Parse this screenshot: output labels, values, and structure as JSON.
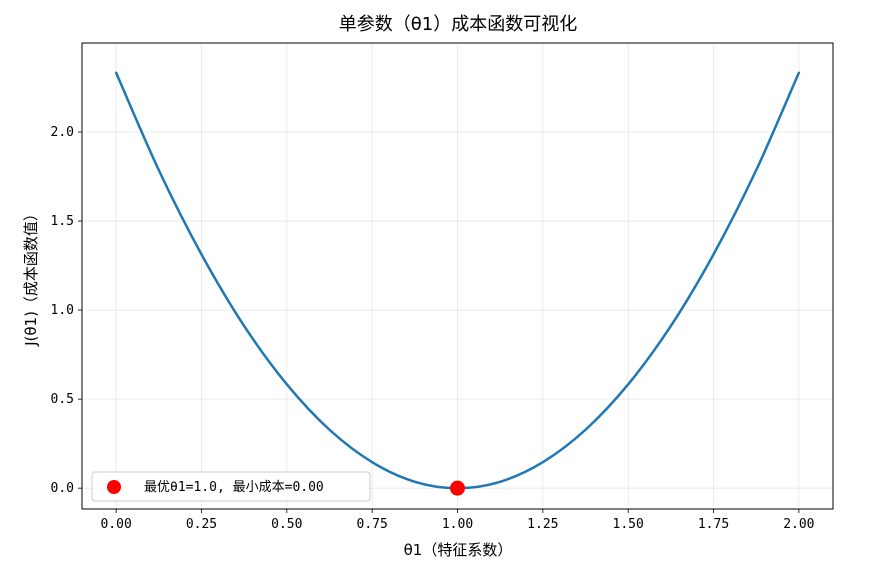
{
  "chart_data": {
    "type": "line",
    "title": "单参数（θ1）成本函数可视化",
    "xlabel": "θ1（特征系数）",
    "ylabel": "J(θ1)（成本函数值）",
    "xlim": [
      -0.1,
      2.1
    ],
    "ylim": [
      -0.117,
      2.5
    ],
    "xticks": [
      "0.00",
      "0.25",
      "0.50",
      "0.75",
      "1.00",
      "1.25",
      "1.50",
      "1.75",
      "2.00"
    ],
    "yticks": [
      "0.0",
      "0.5",
      "1.0",
      "1.5",
      "2.0"
    ],
    "grid": true,
    "series": [
      {
        "x": [
          0.0,
          0.125,
          0.25,
          0.375,
          0.5,
          0.625,
          0.75,
          0.875,
          1.0,
          1.125,
          1.25,
          1.375,
          1.5,
          1.625,
          1.75,
          1.875,
          2.0
        ],
        "y": [
          2.333,
          1.786,
          1.313,
          0.911,
          0.583,
          0.328,
          0.146,
          0.036,
          0.0,
          0.036,
          0.146,
          0.328,
          0.583,
          0.911,
          1.313,
          1.786,
          2.333
        ],
        "color": "#1f77b4"
      }
    ],
    "highlight": {
      "x": 1.0,
      "y": 0.0,
      "color": "#ff0000",
      "label": "最优θ1=1.0, 最小成本=0.00"
    },
    "legend_position": "lower-left"
  }
}
